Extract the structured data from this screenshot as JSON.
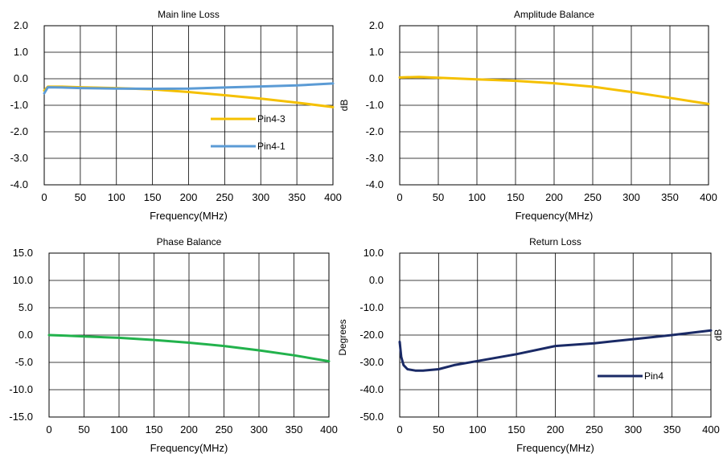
{
  "chart_data": [
    {
      "type": "line",
      "title": "Main line Loss",
      "xlabel": "Frequency(MHz)",
      "ylabel": "",
      "xlim": [
        0,
        400
      ],
      "ylim": [
        -4,
        2
      ],
      "x_ticks": [
        "0",
        "50",
        "100",
        "150",
        "200",
        "250",
        "300",
        "350",
        "400"
      ],
      "y_ticks": [
        "2.0",
        "1.0",
        "0.0",
        "-1.0",
        "-2.0",
        "-3.0",
        "-4.0"
      ],
      "grid": true,
      "legend_position": "right",
      "series": [
        {
          "name": "Pin4-3",
          "color": "#f5c000",
          "x": [
            0,
            5,
            25,
            50,
            100,
            150,
            200,
            250,
            300,
            350,
            400
          ],
          "y": [
            -0.45,
            -0.3,
            -0.3,
            -0.32,
            -0.35,
            -0.4,
            -0.5,
            -0.62,
            -0.75,
            -0.9,
            -1.07
          ]
        },
        {
          "name": "Pin4-1",
          "color": "#5b9bd5",
          "x": [
            0,
            5,
            25,
            50,
            100,
            150,
            200,
            250,
            300,
            350,
            400
          ],
          "y": [
            -0.55,
            -0.32,
            -0.33,
            -0.35,
            -0.37,
            -0.38,
            -0.37,
            -0.33,
            -0.29,
            -0.25,
            -0.18
          ]
        }
      ]
    },
    {
      "type": "line",
      "title": "Amplitude Balance",
      "xlabel": "Frequency(MHz)",
      "ylabel": "dB",
      "xlim": [
        0,
        400
      ],
      "ylim": [
        -4,
        2
      ],
      "x_ticks": [
        "0",
        "50",
        "100",
        "150",
        "200",
        "250",
        "300",
        "350",
        "400"
      ],
      "y_ticks": [
        "2.0",
        "1.0",
        "0.0",
        "-1.0",
        "-2.0",
        "-3.0",
        "-4.0"
      ],
      "grid": true,
      "series": [
        {
          "color": "#f5c000",
          "x": [
            0,
            25,
            50,
            100,
            150,
            200,
            250,
            300,
            350,
            400
          ],
          "y": [
            0.05,
            0.07,
            0.04,
            -0.02,
            -0.08,
            -0.17,
            -0.3,
            -0.5,
            -0.72,
            -0.95
          ]
        }
      ]
    },
    {
      "type": "line",
      "title": "Phase Balance",
      "xlabel": "Frequency(MHz)",
      "ylabel": "",
      "xlim": [
        0,
        400
      ],
      "ylim": [
        -15,
        15
      ],
      "x_ticks": [
        "0",
        "50",
        "100",
        "150",
        "200",
        "250",
        "300",
        "350",
        "400"
      ],
      "y_ticks": [
        "15.0",
        "10.0",
        "5.0",
        "0.0",
        "-5.0",
        "-10.0",
        "-15.0"
      ],
      "grid": true,
      "series": [
        {
          "color": "#22b24c",
          "x": [
            0,
            25,
            50,
            100,
            150,
            200,
            250,
            300,
            350,
            400
          ],
          "y": [
            0.0,
            -0.1,
            -0.25,
            -0.5,
            -0.9,
            -1.4,
            -2.0,
            -2.8,
            -3.7,
            -4.8
          ]
        }
      ]
    },
    {
      "type": "line",
      "title": "Return Loss",
      "xlabel": "Frequency(MHz)",
      "ylabel": "dB",
      "xlim": [
        0,
        400
      ],
      "ylim": [
        -50,
        10
      ],
      "x_ticks": [
        "0",
        "50",
        "100",
        "150",
        "200",
        "250",
        "300",
        "350",
        "400"
      ],
      "y_ticks": [
        "10.0",
        "0.0",
        "-10.0",
        "-20.0",
        "-30.0",
        "-40.0",
        "-50.0"
      ],
      "grid": true,
      "legend_position": "right",
      "series": [
        {
          "name": "Pin4",
          "color": "#1a2a66",
          "x": [
            0,
            2,
            5,
            10,
            20,
            30,
            50,
            70,
            100,
            150,
            200,
            250,
            300,
            350,
            400
          ],
          "y": [
            -22.5,
            -28,
            -31,
            -32.5,
            -33,
            -33,
            -32.5,
            -31,
            -29.5,
            -27,
            -24,
            -23,
            -21.5,
            -20,
            -18.3
          ]
        }
      ]
    }
  ],
  "side_labels": {
    "degrees": "Degrees"
  }
}
